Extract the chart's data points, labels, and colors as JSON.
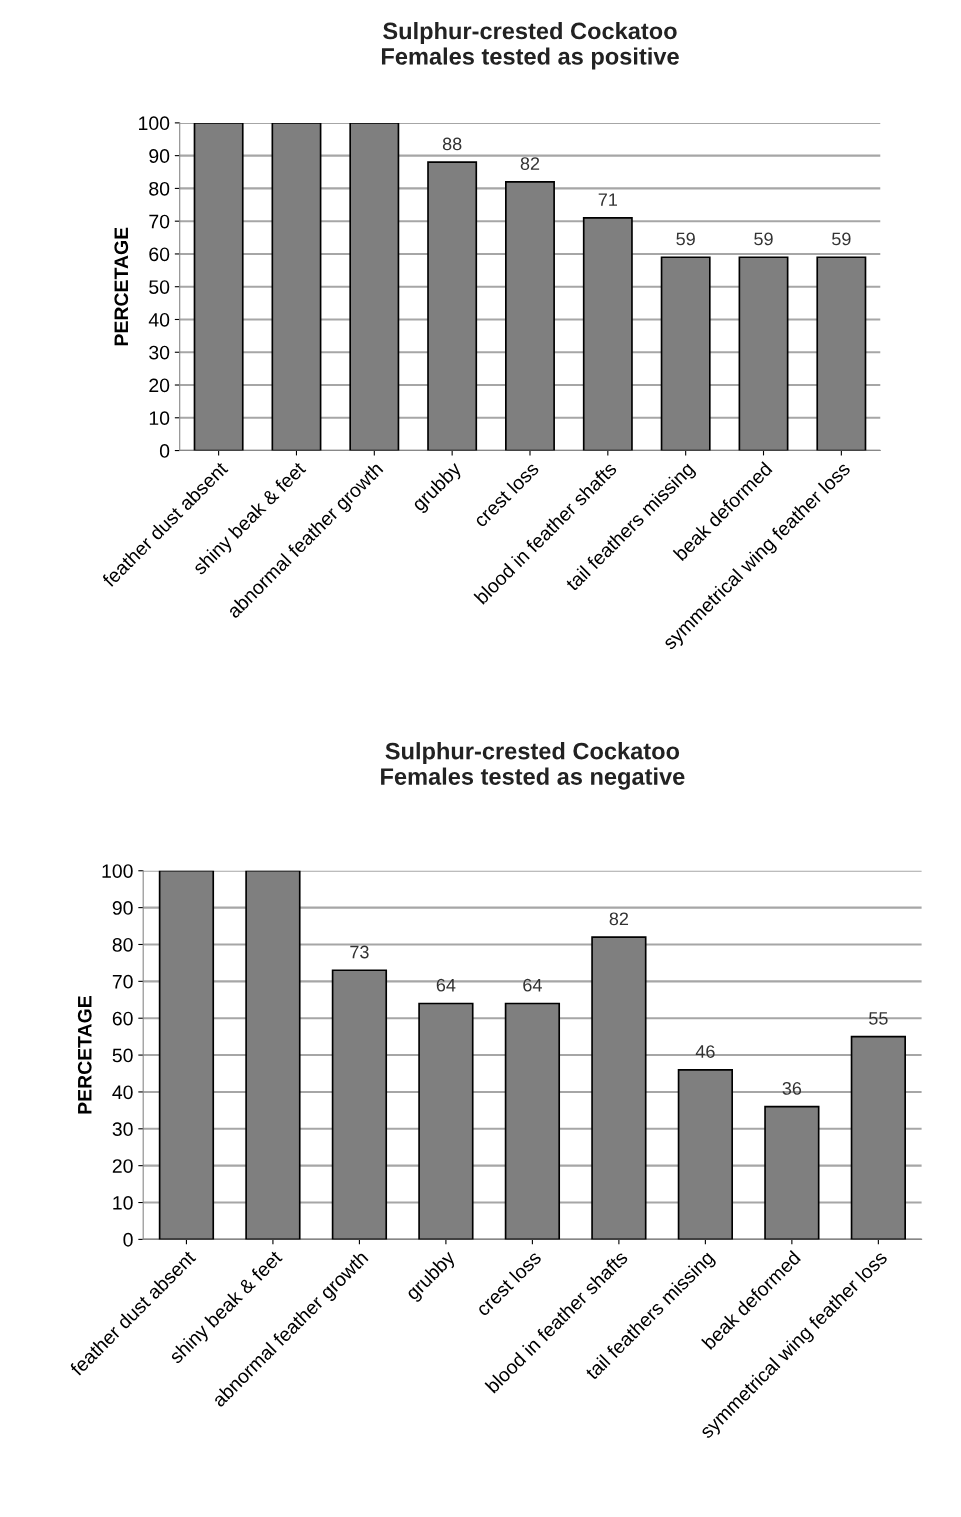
{
  "chart_data": [
    {
      "type": "bar",
      "title": "Sulphur-crested Cockatoo\nFemales tested as positive",
      "ylabel": "PERCETAGE",
      "categories": [
        "feather dust absent",
        "shiny beak & feet",
        "abnormal feather growth",
        "grubby",
        "crest loss",
        "blood in feather shafts",
        "tail feathers missing",
        "beak deformed",
        "symmetrical wing feather loss"
      ],
      "values": [
        100,
        100,
        100,
        88,
        82,
        71,
        59,
        59,
        59
      ],
      "value_labels": [
        null,
        null,
        null,
        "88",
        "82",
        "71",
        "59",
        "59",
        "59"
      ],
      "color": "#7f7f7f",
      "ylim": [
        0,
        100
      ],
      "yticks": [
        0,
        10,
        20,
        30,
        40,
        50,
        60,
        70,
        80,
        90,
        100
      ],
      "grid": "y"
    },
    {
      "type": "bar",
      "title": "Sulphur-crested Cockatoo\nFemales tested as negative",
      "ylabel": "PERCETAGE",
      "categories": [
        "feather dust absent",
        "shiny beak & feet",
        "abnormal feather growth",
        "grubby",
        "crest loss",
        "blood in feather shafts",
        "tail feathers missing",
        "beak deformed",
        "symmetrical wing feather loss"
      ],
      "values": [
        100,
        100,
        73,
        64,
        64,
        82,
        46,
        36,
        55
      ],
      "value_labels": [
        null,
        null,
        "73",
        "64",
        "64",
        "82",
        "46",
        "36",
        "55"
      ],
      "color": "#7f7f7f",
      "ylim": [
        0,
        100
      ],
      "yticks": [
        0,
        10,
        20,
        30,
        40,
        50,
        60,
        70,
        80,
        90,
        100
      ],
      "grid": "y"
    }
  ]
}
